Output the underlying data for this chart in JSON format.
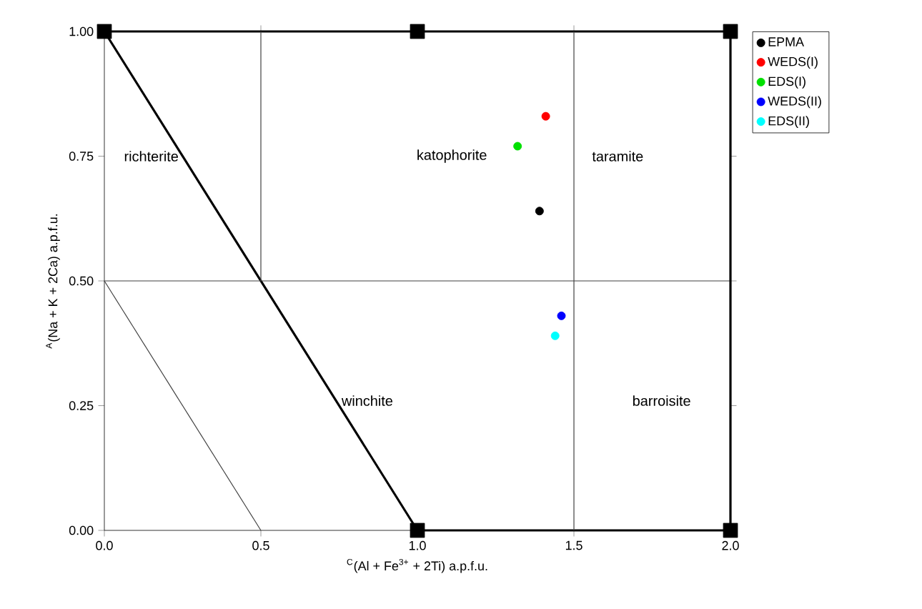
{
  "chart_data": {
    "type": "scatter",
    "xlabel": "$^{C}$(Al + Fe$^{3+}$ + 2Ti) a.p.f.u.",
    "ylabel": "$^{A}$(Na + K + 2Ca) a.p.f.u.",
    "xlim": [
      0,
      2
    ],
    "ylim": [
      0,
      1
    ],
    "xticks": [
      {
        "value": 0,
        "label": "0.0"
      },
      {
        "value": 0.5,
        "label": "0.5"
      },
      {
        "value": 1,
        "label": "1.0"
      },
      {
        "value": 1.5,
        "label": "1.5"
      },
      {
        "value": 2,
        "label": "2.0"
      }
    ],
    "yticks": [
      {
        "value": 0,
        "label": "0.00"
      },
      {
        "value": 0.25,
        "label": "0.25"
      },
      {
        "value": 0.5,
        "label": "0.50"
      },
      {
        "value": 0.75,
        "label": "0.75"
      },
      {
        "value": 1,
        "label": "1.00"
      }
    ],
    "grid": false,
    "legend": "top right",
    "marker": "circle",
    "ref_lines": [
      {
        "axis": "y",
        "value": 0.5,
        "color": "#404040"
      },
      {
        "axis": "x",
        "value": 1.5,
        "color": "#404040"
      },
      {
        "axis": "x",
        "value": 2,
        "color": "#000000"
      }
    ],
    "series": [
      {
        "type": "line",
        "marker": "none",
        "color": "#000000",
        "x": [
          0,
          1,
          2
        ],
        "values": [
          1,
          0,
          0
        ]
      },
      {
        "type": "line",
        "marker": "none",
        "color": "#000000",
        "x": [
          0,
          2
        ],
        "values": [
          1,
          1
        ]
      },
      {
        "type": "scatter",
        "marker": "square",
        "color": "#000000",
        "x": [
          0,
          1,
          2,
          1,
          2
        ],
        "values": [
          1,
          1,
          1,
          0,
          0
        ]
      },
      {
        "type": "line",
        "marker": "none",
        "color": "#404040",
        "x": [
          0.5,
          0.5
        ],
        "values": [
          0.5,
          1
        ]
      },
      {
        "type": "line",
        "marker": "none",
        "color": "#404040",
        "x": [
          0,
          0.5
        ],
        "values": [
          0.5,
          0
        ]
      },
      {
        "name": "EPMA",
        "color": "#000000",
        "x": [
          1.39
        ],
        "values": [
          0.64
        ]
      },
      {
        "name": "WEDS(I)",
        "color": "#ff0000",
        "x": [
          1.41
        ],
        "values": [
          0.83
        ]
      },
      {
        "name": "EDS(I)",
        "color": "#00e000",
        "x": [
          1.32
        ],
        "values": [
          0.77
        ]
      },
      {
        "name": "WEDS(II)",
        "color": "#0000ff",
        "x": [
          1.46
        ],
        "values": [
          0.43
        ]
      },
      {
        "name": "EDS(II)",
        "color": "#00ffff",
        "x": [
          1.44
        ],
        "values": [
          0.39
        ]
      }
    ],
    "annotations": [
      "richterite",
      "katophorite",
      "taramite",
      "winchite",
      "barroisite"
    ]
  }
}
